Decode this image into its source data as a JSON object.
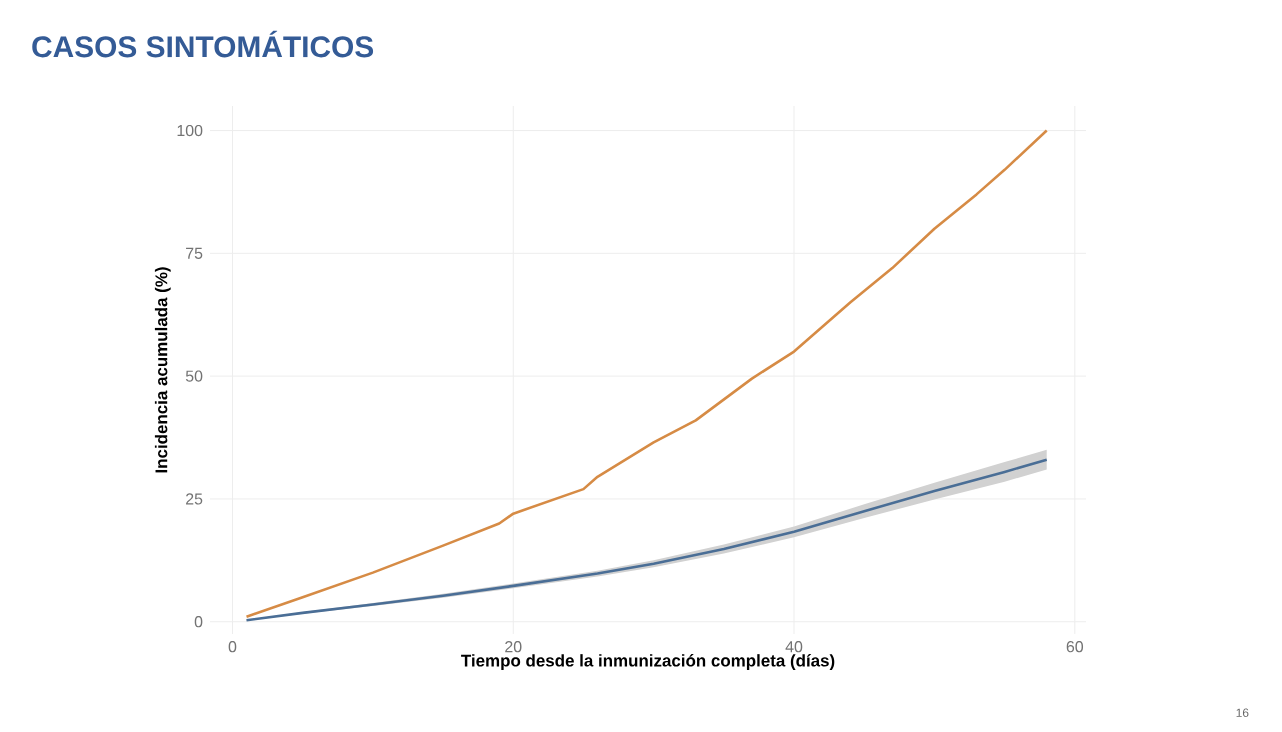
{
  "chart_data": {
    "type": "line",
    "title": "CASOS SINTOMÁTICOS",
    "xlabel": "Tiempo desde la inmunización completa (días)",
    "ylabel": "Incidencia acumulada (%)",
    "annotations": [
      "16"
    ],
    "xlim": [
      -1.6,
      60.8
    ],
    "ylim": [
      -2.5,
      105
    ],
    "xticks": [
      0,
      20,
      40,
      60
    ],
    "yticks": [
      0,
      25,
      50,
      75,
      100
    ],
    "grid": true,
    "line_style": "solid",
    "series": [
      {
        "color": "#d68b45",
        "x": [
          1,
          5,
          10,
          15,
          19,
          20,
          25,
          26,
          30,
          33,
          37,
          40,
          44,
          47,
          50,
          53,
          55,
          58
        ],
        "values": [
          1,
          5,
          10,
          15.5,
          20,
          22,
          27,
          29.5,
          36.5,
          41,
          49.5,
          55,
          65,
          72,
          80,
          87,
          92,
          100
        ]
      },
      {
        "color": "#4a6e96",
        "x": [
          1,
          5,
          10,
          15,
          20,
          26,
          30,
          35,
          40,
          45,
          50,
          55,
          58
        ],
        "values": [
          0.3,
          1.8,
          3.5,
          5.3,
          7.3,
          9.8,
          11.8,
          14.8,
          18.3,
          22.5,
          26.6,
          30.5,
          33
        ],
        "lower": [
          0.2,
          1.6,
          3.2,
          4.9,
          6.8,
          9.2,
          11.1,
          13.9,
          17.2,
          21.1,
          24.9,
          28.5,
          31
        ],
        "upper": [
          0.4,
          2,
          3.8,
          5.7,
          7.8,
          10.4,
          12.5,
          15.7,
          19.4,
          23.9,
          28.3,
          32.5,
          35
        ]
      }
    ]
  }
}
